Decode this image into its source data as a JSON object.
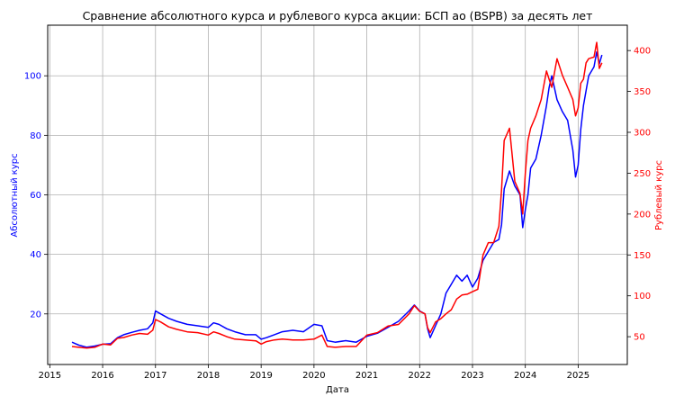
{
  "chart_data": {
    "type": "line",
    "title": "Сравнение абсолютного курса и рублевого курса акции: БСП ао (BSPB) за десять лет",
    "xlabel": "Дата",
    "ylabel_left": "Абсолютный курс",
    "ylabel_right": "Рублевый курс",
    "x_ticks": [
      "2015",
      "2016",
      "2017",
      "2018",
      "2019",
      "2020",
      "2021",
      "2022",
      "2023",
      "2024",
      "2025"
    ],
    "y_left_ticks": [
      "20",
      "40",
      "60",
      "80",
      "100"
    ],
    "y_right_ticks": [
      "50",
      "100",
      "150",
      "200",
      "250",
      "300",
      "350",
      "400"
    ],
    "xlim": [
      2014.96,
      2025.93
    ],
    "ylim_left": [
      3,
      117
    ],
    "ylim_right": [
      16,
      431
    ],
    "grid": true,
    "series": [
      {
        "axis": "left",
        "color": "#0000ff",
        "points": [
          [
            2015.42,
            10.5
          ],
          [
            2015.55,
            9.5
          ],
          [
            2015.7,
            8.8
          ],
          [
            2015.85,
            9.2
          ],
          [
            2016.0,
            9.8
          ],
          [
            2016.15,
            10.0
          ],
          [
            2016.28,
            12.0
          ],
          [
            2016.4,
            13.0
          ],
          [
            2016.55,
            13.8
          ],
          [
            2016.7,
            14.5
          ],
          [
            2016.85,
            15.0
          ],
          [
            2016.95,
            17.0
          ],
          [
            2017.0,
            21.0
          ],
          [
            2017.1,
            20.0
          ],
          [
            2017.25,
            18.5
          ],
          [
            2017.4,
            17.5
          ],
          [
            2017.6,
            16.5
          ],
          [
            2017.8,
            16.0
          ],
          [
            2018.0,
            15.5
          ],
          [
            2018.1,
            17.0
          ],
          [
            2018.2,
            16.5
          ],
          [
            2018.35,
            15.0
          ],
          [
            2018.5,
            14.0
          ],
          [
            2018.7,
            13.0
          ],
          [
            2018.9,
            13.0
          ],
          [
            2019.0,
            11.5
          ],
          [
            2019.1,
            12.0
          ],
          [
            2019.25,
            13.0
          ],
          [
            2019.4,
            14.0
          ],
          [
            2019.6,
            14.5
          ],
          [
            2019.8,
            14.0
          ],
          [
            2020.0,
            16.5
          ],
          [
            2020.15,
            16.0
          ],
          [
            2020.25,
            11.0
          ],
          [
            2020.4,
            10.5
          ],
          [
            2020.6,
            11.0
          ],
          [
            2020.8,
            10.5
          ],
          [
            2021.0,
            12.5
          ],
          [
            2021.2,
            13.5
          ],
          [
            2021.4,
            15.5
          ],
          [
            2021.6,
            17.5
          ],
          [
            2021.8,
            21.0
          ],
          [
            2021.9,
            23.0
          ],
          [
            2022.0,
            21.0
          ],
          [
            2022.1,
            20.0
          ],
          [
            2022.15,
            15.0
          ],
          [
            2022.2,
            12.0
          ],
          [
            2022.3,
            16.0
          ],
          [
            2022.4,
            20.0
          ],
          [
            2022.5,
            27.0
          ],
          [
            2022.6,
            30.0
          ],
          [
            2022.7,
            33.0
          ],
          [
            2022.8,
            31.0
          ],
          [
            2022.9,
            33.0
          ],
          [
            2023.0,
            29.0
          ],
          [
            2023.1,
            32.0
          ],
          [
            2023.2,
            38.0
          ],
          [
            2023.3,
            41.0
          ],
          [
            2023.4,
            44.0
          ],
          [
            2023.5,
            45.0
          ],
          [
            2023.55,
            50.0
          ],
          [
            2023.6,
            62.0
          ],
          [
            2023.7,
            68.0
          ],
          [
            2023.8,
            63.0
          ],
          [
            2023.9,
            60.0
          ],
          [
            2023.95,
            49.0
          ],
          [
            2024.0,
            55.0
          ],
          [
            2024.05,
            60.0
          ],
          [
            2024.1,
            69.0
          ],
          [
            2024.2,
            72.0
          ],
          [
            2024.3,
            80.0
          ],
          [
            2024.4,
            90.0
          ],
          [
            2024.45,
            96.0
          ],
          [
            2024.5,
            100.0
          ],
          [
            2024.6,
            92.0
          ],
          [
            2024.7,
            88.0
          ],
          [
            2024.8,
            85.0
          ],
          [
            2024.9,
            75.0
          ],
          [
            2024.95,
            66.0
          ],
          [
            2025.0,
            70.0
          ],
          [
            2025.05,
            82.0
          ],
          [
            2025.1,
            90.0
          ],
          [
            2025.15,
            95.0
          ],
          [
            2025.2,
            100.0
          ],
          [
            2025.3,
            103.0
          ],
          [
            2025.35,
            108.0
          ],
          [
            2025.4,
            104.0
          ],
          [
            2025.45,
            107.0
          ]
        ]
      },
      {
        "axis": "right",
        "color": "#ff0000",
        "points": [
          [
            2015.42,
            38
          ],
          [
            2015.55,
            37
          ],
          [
            2015.7,
            36
          ],
          [
            2015.85,
            37
          ],
          [
            2016.0,
            41
          ],
          [
            2016.15,
            40
          ],
          [
            2016.28,
            48
          ],
          [
            2016.4,
            49
          ],
          [
            2016.55,
            52
          ],
          [
            2016.7,
            54
          ],
          [
            2016.85,
            53
          ],
          [
            2016.95,
            58
          ],
          [
            2017.0,
            71
          ],
          [
            2017.1,
            68
          ],
          [
            2017.25,
            62
          ],
          [
            2017.4,
            59
          ],
          [
            2017.6,
            56
          ],
          [
            2017.8,
            55
          ],
          [
            2018.0,
            52
          ],
          [
            2018.1,
            56
          ],
          [
            2018.2,
            54
          ],
          [
            2018.35,
            50
          ],
          [
            2018.5,
            47
          ],
          [
            2018.7,
            46
          ],
          [
            2018.9,
            45
          ],
          [
            2019.0,
            41
          ],
          [
            2019.1,
            44
          ],
          [
            2019.25,
            46
          ],
          [
            2019.4,
            47
          ],
          [
            2019.6,
            46
          ],
          [
            2019.8,
            46
          ],
          [
            2020.0,
            47
          ],
          [
            2020.15,
            52
          ],
          [
            2020.25,
            38
          ],
          [
            2020.4,
            37
          ],
          [
            2020.6,
            38
          ],
          [
            2020.8,
            38
          ],
          [
            2021.0,
            52
          ],
          [
            2021.2,
            55
          ],
          [
            2021.4,
            63
          ],
          [
            2021.6,
            65
          ],
          [
            2021.8,
            78
          ],
          [
            2021.9,
            88
          ],
          [
            2022.0,
            81
          ],
          [
            2022.1,
            78
          ],
          [
            2022.15,
            61
          ],
          [
            2022.2,
            55
          ],
          [
            2022.3,
            68
          ],
          [
            2022.4,
            72
          ],
          [
            2022.5,
            78
          ],
          [
            2022.6,
            83
          ],
          [
            2022.7,
            96
          ],
          [
            2022.8,
            101
          ],
          [
            2022.9,
            102
          ],
          [
            2023.0,
            105
          ],
          [
            2023.1,
            108
          ],
          [
            2023.2,
            150
          ],
          [
            2023.3,
            165
          ],
          [
            2023.4,
            165
          ],
          [
            2023.5,
            185
          ],
          [
            2023.55,
            230
          ],
          [
            2023.6,
            290
          ],
          [
            2023.7,
            305
          ],
          [
            2023.8,
            240
          ],
          [
            2023.9,
            225
          ],
          [
            2023.95,
            200
          ],
          [
            2024.0,
            250
          ],
          [
            2024.05,
            290
          ],
          [
            2024.1,
            305
          ],
          [
            2024.2,
            320
          ],
          [
            2024.3,
            340
          ],
          [
            2024.4,
            375
          ],
          [
            2024.45,
            365
          ],
          [
            2024.5,
            355
          ],
          [
            2024.6,
            390
          ],
          [
            2024.7,
            370
          ],
          [
            2024.8,
            355
          ],
          [
            2024.9,
            340
          ],
          [
            2024.95,
            320
          ],
          [
            2025.0,
            330
          ],
          [
            2025.05,
            360
          ],
          [
            2025.1,
            365
          ],
          [
            2025.15,
            385
          ],
          [
            2025.2,
            390
          ],
          [
            2025.3,
            392
          ],
          [
            2025.35,
            410
          ],
          [
            2025.4,
            378
          ],
          [
            2025.45,
            385
          ]
        ]
      }
    ]
  }
}
